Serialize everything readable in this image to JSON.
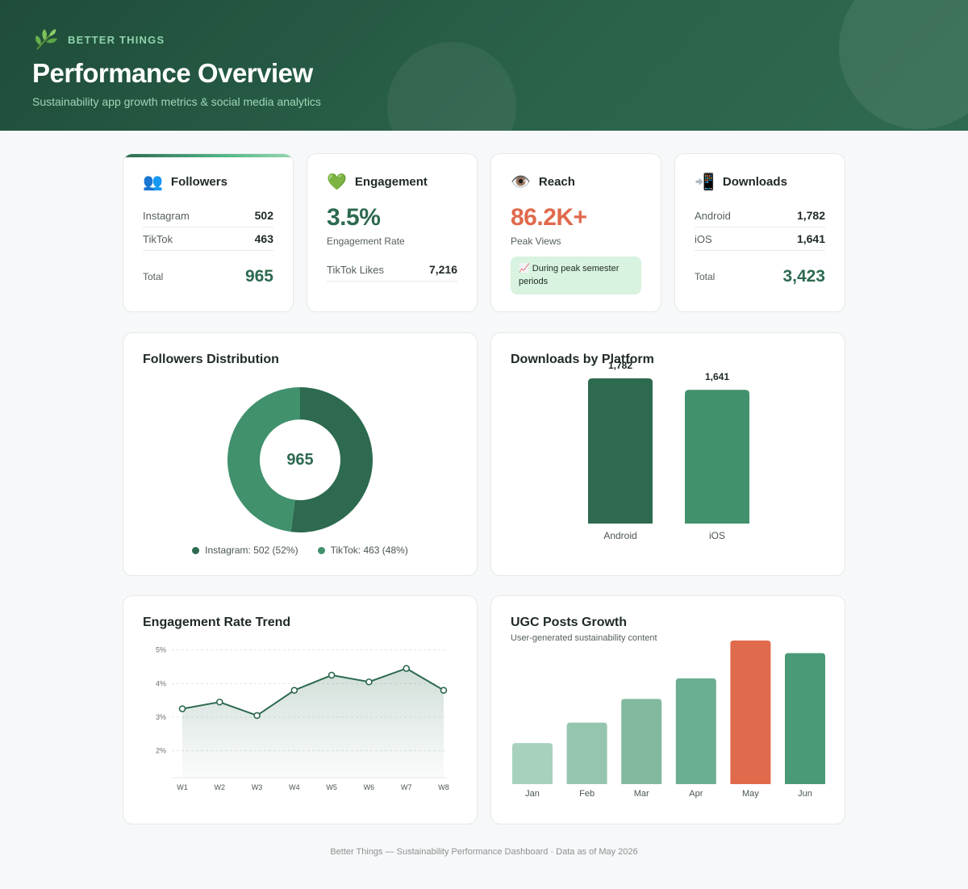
{
  "header": {
    "brand": "BETTER THINGS",
    "title": "Performance Overview",
    "subtitle": "Sustainability app growth metrics & social media analytics"
  },
  "kpis": {
    "followers": {
      "icon": "people-icon",
      "icon_glyph": "👥",
      "title": "Followers",
      "rows": [
        {
          "label": "Instagram",
          "value": "502"
        },
        {
          "label": "TikTok",
          "value": "463"
        }
      ],
      "total_label": "Total",
      "total_value": "965"
    },
    "engagement": {
      "icon": "green-heart-icon",
      "icon_glyph": "💚",
      "title": "Engagement",
      "metric": "3.5%",
      "metric_color": "#2d6a4f",
      "caption": "Engagement Rate",
      "row": {
        "label": "TikTok Likes",
        "value": "7,216"
      }
    },
    "reach": {
      "icon": "eye-icon",
      "icon_glyph": "👁️",
      "title": "Reach",
      "metric": "86.2K+",
      "metric_color": "#e06a4c",
      "caption": "Peak Views",
      "note_icon": "chart-increasing-icon",
      "note_glyph": "📈",
      "note": "During peak semester periods"
    },
    "downloads": {
      "icon": "mobile-download-icon",
      "icon_glyph": "📲",
      "title": "Downloads",
      "rows": [
        {
          "label": "Android",
          "value": "1,782"
        },
        {
          "label": "iOS",
          "value": "1,641"
        }
      ],
      "total_label": "Total",
      "total_value": "3,423"
    }
  },
  "panels": {
    "followers_distribution": {
      "title": "Followers Distribution",
      "center_label": "965"
    },
    "downloads_by_platform": {
      "title": "Downloads by Platform"
    },
    "engagement_trend": {
      "title": "Engagement Rate Trend"
    },
    "ugc_growth": {
      "title": "UGC Posts Growth",
      "subtitle": "User-generated sustainability content"
    }
  },
  "colors": {
    "dark_green": "#2d6a4f",
    "mid_green": "#40916c",
    "accent_orange": "#e06a4c",
    "header_bg": "#1f4d3a"
  },
  "chart_data": [
    {
      "type": "pie",
      "variant": "donut",
      "categories": [
        "Instagram",
        "TikTok"
      ],
      "values": [
        502,
        463
      ],
      "legend": [
        "Instagram: 502 (52%)",
        "TikTok: 463 (48%)"
      ],
      "colors": [
        "#2d6a4f",
        "#40916c"
      ],
      "center_text": "965",
      "legend_position": "bottom"
    },
    {
      "type": "bar",
      "categories": [
        "Android",
        "iOS"
      ],
      "values": [
        1782,
        1641
      ],
      "data_labels": [
        "1,782",
        "1,641"
      ],
      "colors": [
        "#2d6a4f",
        "#40916c"
      ],
      "ylim": [
        0,
        1782
      ]
    },
    {
      "type": "area",
      "x": [
        "W1",
        "W2",
        "W3",
        "W4",
        "W5",
        "W6",
        "W7",
        "W8"
      ],
      "values": [
        3.25,
        3.45,
        3.05,
        3.8,
        4.25,
        4.05,
        4.45,
        3.8
      ],
      "ytick_labels": [
        "5%",
        "4%",
        "3%",
        "2%"
      ],
      "ytick_values": [
        5,
        4,
        3,
        2
      ],
      "ylim": [
        1.2,
        5.4
      ],
      "line_color": "#2d6a4f",
      "grid": true
    },
    {
      "type": "bar",
      "categories": [
        "Jan",
        "Feb",
        "Mar",
        "Apr",
        "May",
        "Jun"
      ],
      "values": [
        26,
        39,
        54,
        67,
        91,
        83
      ],
      "colors": [
        "#a8d1bd",
        "#95c5ae",
        "#82b99f",
        "#6cae91",
        "#e06a4c",
        "#4a9a77"
      ],
      "ylim": [
        0,
        92
      ]
    }
  ],
  "footer": "Better Things — Sustainability Performance Dashboard · Data as of May 2026"
}
